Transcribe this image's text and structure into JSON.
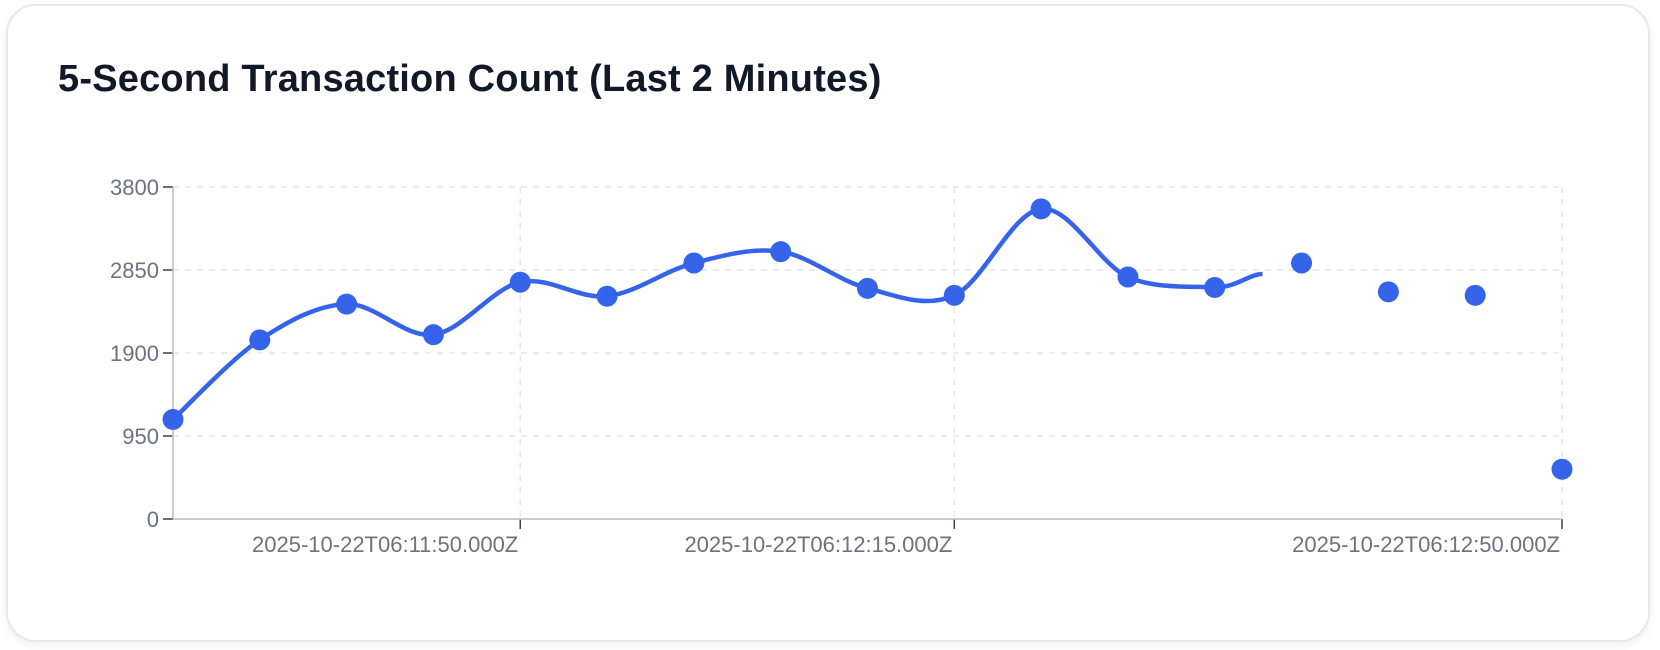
{
  "card": {
    "title": "5-Second Transaction Count (Last 2 Minutes)"
  },
  "chart_data": {
    "type": "line",
    "title": "5-Second Transaction Count (Last 2 Minutes)",
    "xlabel": "",
    "ylabel": "",
    "ylim": [
      0,
      3800
    ],
    "yticks": [
      0,
      950,
      1900,
      2850,
      3800
    ],
    "xlim": [
      "2025-10-22T06:11:30.000Z",
      "2025-10-22T06:12:50.000Z"
    ],
    "xticks": [
      {
        "value": "2025-10-22T06:11:50.000Z",
        "label": "2025-10-22T06:11:50.000Z"
      },
      {
        "value": "2025-10-22T06:12:15.000Z",
        "label": "2025-10-22T06:12:15.000Z"
      },
      {
        "value": "2025-10-22T06:12:50.000Z",
        "label": "2025-10-22T06:12:50.000Z"
      }
    ],
    "grid": true,
    "line_color": "#3563e9",
    "series": [
      {
        "points": [
          {
            "x": "2025-10-22T06:11:30.000Z",
            "y": 1140
          },
          {
            "x": "2025-10-22T06:11:35.000Z",
            "y": 2050
          },
          {
            "x": "2025-10-22T06:11:40.000Z",
            "y": 2460
          },
          {
            "x": "2025-10-22T06:11:45.000Z",
            "y": 2110
          },
          {
            "x": "2025-10-22T06:11:50.000Z",
            "y": 2710
          },
          {
            "x": "2025-10-22T06:11:55.000Z",
            "y": 2550
          },
          {
            "x": "2025-10-22T06:12:00.000Z",
            "y": 2930
          },
          {
            "x": "2025-10-22T06:12:05.000Z",
            "y": 3060
          },
          {
            "x": "2025-10-22T06:12:10.000Z",
            "y": 2640
          },
          {
            "x": "2025-10-22T06:12:15.000Z",
            "y": 2560
          },
          {
            "x": "2025-10-22T06:12:20.000Z",
            "y": 3550
          },
          {
            "x": "2025-10-22T06:12:25.000Z",
            "y": 2770
          },
          {
            "x": "2025-10-22T06:12:30.000Z",
            "y": 2650
          },
          {
            "x": "2025-10-22T06:12:35.000Z",
            "y": 2930
          },
          {
            "x": "2025-10-22T06:12:40.000Z",
            "y": 2600
          },
          {
            "x": "2025-10-22T06:12:45.000Z",
            "y": 2560
          },
          {
            "x": "2025-10-22T06:12:50.000Z",
            "y": 570
          }
        ],
        "line_through_point_count": 13
      }
    ]
  }
}
